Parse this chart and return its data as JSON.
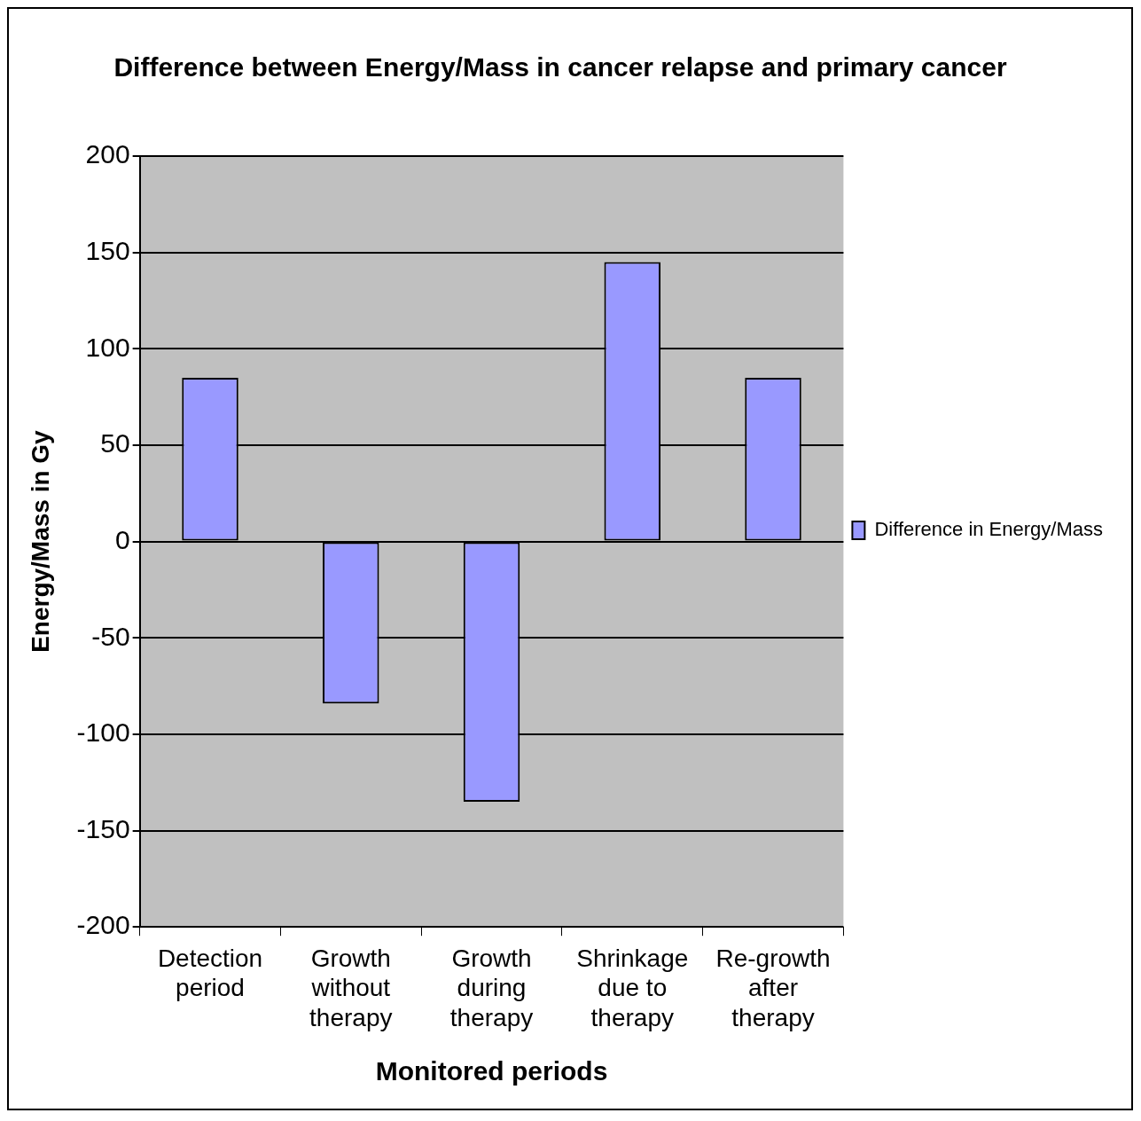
{
  "chart_data": {
    "type": "bar",
    "title": "Difference between Energy/Mass in cancer relapse and primary cancer",
    "xlabel": "Monitored periods",
    "ylabel": "Energy/Mass in Gy",
    "categories": [
      "Detection period",
      "Growth without therapy",
      "Growth during therapy",
      "Shrinkage due to therapy",
      "Re-growth after therapy"
    ],
    "series": [
      {
        "name": "Difference in Energy/Mass",
        "color": "#9999ff",
        "values": [
          85,
          -84,
          -135,
          145,
          85
        ]
      }
    ],
    "ylim": [
      -200,
      200
    ],
    "yticks": [
      -200,
      -150,
      -100,
      -50,
      0,
      50,
      100,
      150,
      200
    ],
    "grid": "y",
    "legend": "right"
  }
}
